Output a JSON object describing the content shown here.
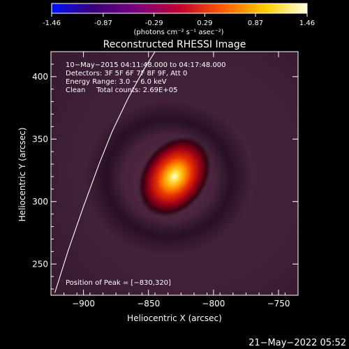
{
  "colorbar": {
    "ticks": [
      "-1.46",
      "-0.87",
      "-0.29",
      "0.29",
      "0.87",
      "1.46"
    ],
    "min": -1.46,
    "max": 1.46,
    "unit_label": "(photons cm⁻² s⁻¹ asec⁻²)",
    "colors": [
      "#0010ff",
      "#3a007a",
      "#7a0080",
      "#c30030",
      "#ff5a00",
      "#ffd000",
      "#ffffe0"
    ]
  },
  "chart_data": {
    "type": "heatmap",
    "title": "Reconstructed RHESSI Image",
    "xlabel": "Heliocentric X (arcsec)",
    "ylabel": "Heliocentric Y (arcsec)",
    "xlim": [
      -925,
      -735
    ],
    "ylim": [
      225,
      420
    ],
    "xticks": [
      -900,
      -850,
      -800,
      -750
    ],
    "xtick_labels": [
      "−900",
      "−850",
      "−800",
      "−750"
    ],
    "yticks": [
      250,
      300,
      350,
      400
    ],
    "ytick_labels": [
      "250",
      "300",
      "350",
      "400"
    ],
    "info_lines": [
      "10−May−2015 04:11:48.000 to 04:17:48.000",
      "Detectors: 3F 5F 6F 7F 8F 9F, Att 0",
      "Energy Range: 3.0 − 6.0 keV",
      "Clean     Total counts: 2.69E+05"
    ],
    "peak_label": "Position of Peak = [−830,320]",
    "peak": [
      -830,
      320
    ],
    "limb_points": [
      [
        -922,
        227
      ],
      [
        -912,
        260
      ],
      [
        -900,
        296
      ],
      [
        -888,
        330
      ],
      [
        -878,
        356
      ],
      [
        -866,
        382
      ],
      [
        -854,
        405
      ],
      [
        -845,
        420
      ]
    ]
  },
  "footer": {
    "timestamp": "21−May−2022 05:52"
  }
}
